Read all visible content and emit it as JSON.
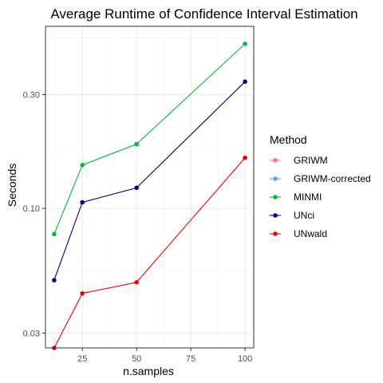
{
  "chart_data": {
    "type": "line",
    "title": "Average Runtime of Confidence Interval Estimation",
    "xlabel": "n.samples",
    "ylabel": "Seconds",
    "x": [
      12,
      25,
      50,
      100
    ],
    "xlim": [
      8,
      104
    ],
    "ylim": [
      0.026,
      0.58
    ],
    "y_scale": "log",
    "x_ticks": [
      25,
      50,
      75,
      100
    ],
    "x_tick_labels": [
      "25",
      "50",
      "75",
      "100"
    ],
    "y_ticks": [
      0.03,
      0.1,
      0.3
    ],
    "y_tick_labels": [
      "0.03",
      "0.10",
      "0.30"
    ],
    "grid": true,
    "legend_title": "Method",
    "legend_position": "right",
    "series": [
      {
        "name": "GRIWM",
        "color": "#F8766D",
        "values": [
          null,
          null,
          null,
          null
        ]
      },
      {
        "name": "GRIWM-corrected",
        "color": "#619CFF",
        "values": [
          null,
          null,
          null,
          null
        ]
      },
      {
        "name": "MINMI",
        "color": "#00BA38",
        "values": [
          0.078,
          0.152,
          0.186,
          0.49
        ]
      },
      {
        "name": "UNci",
        "color": "#00008B",
        "values": [
          0.05,
          0.106,
          0.122,
          0.34
        ]
      },
      {
        "name": "UNwald",
        "color": "#EE0000",
        "values": [
          0.026,
          0.044,
          0.049,
          0.163
        ]
      }
    ]
  }
}
